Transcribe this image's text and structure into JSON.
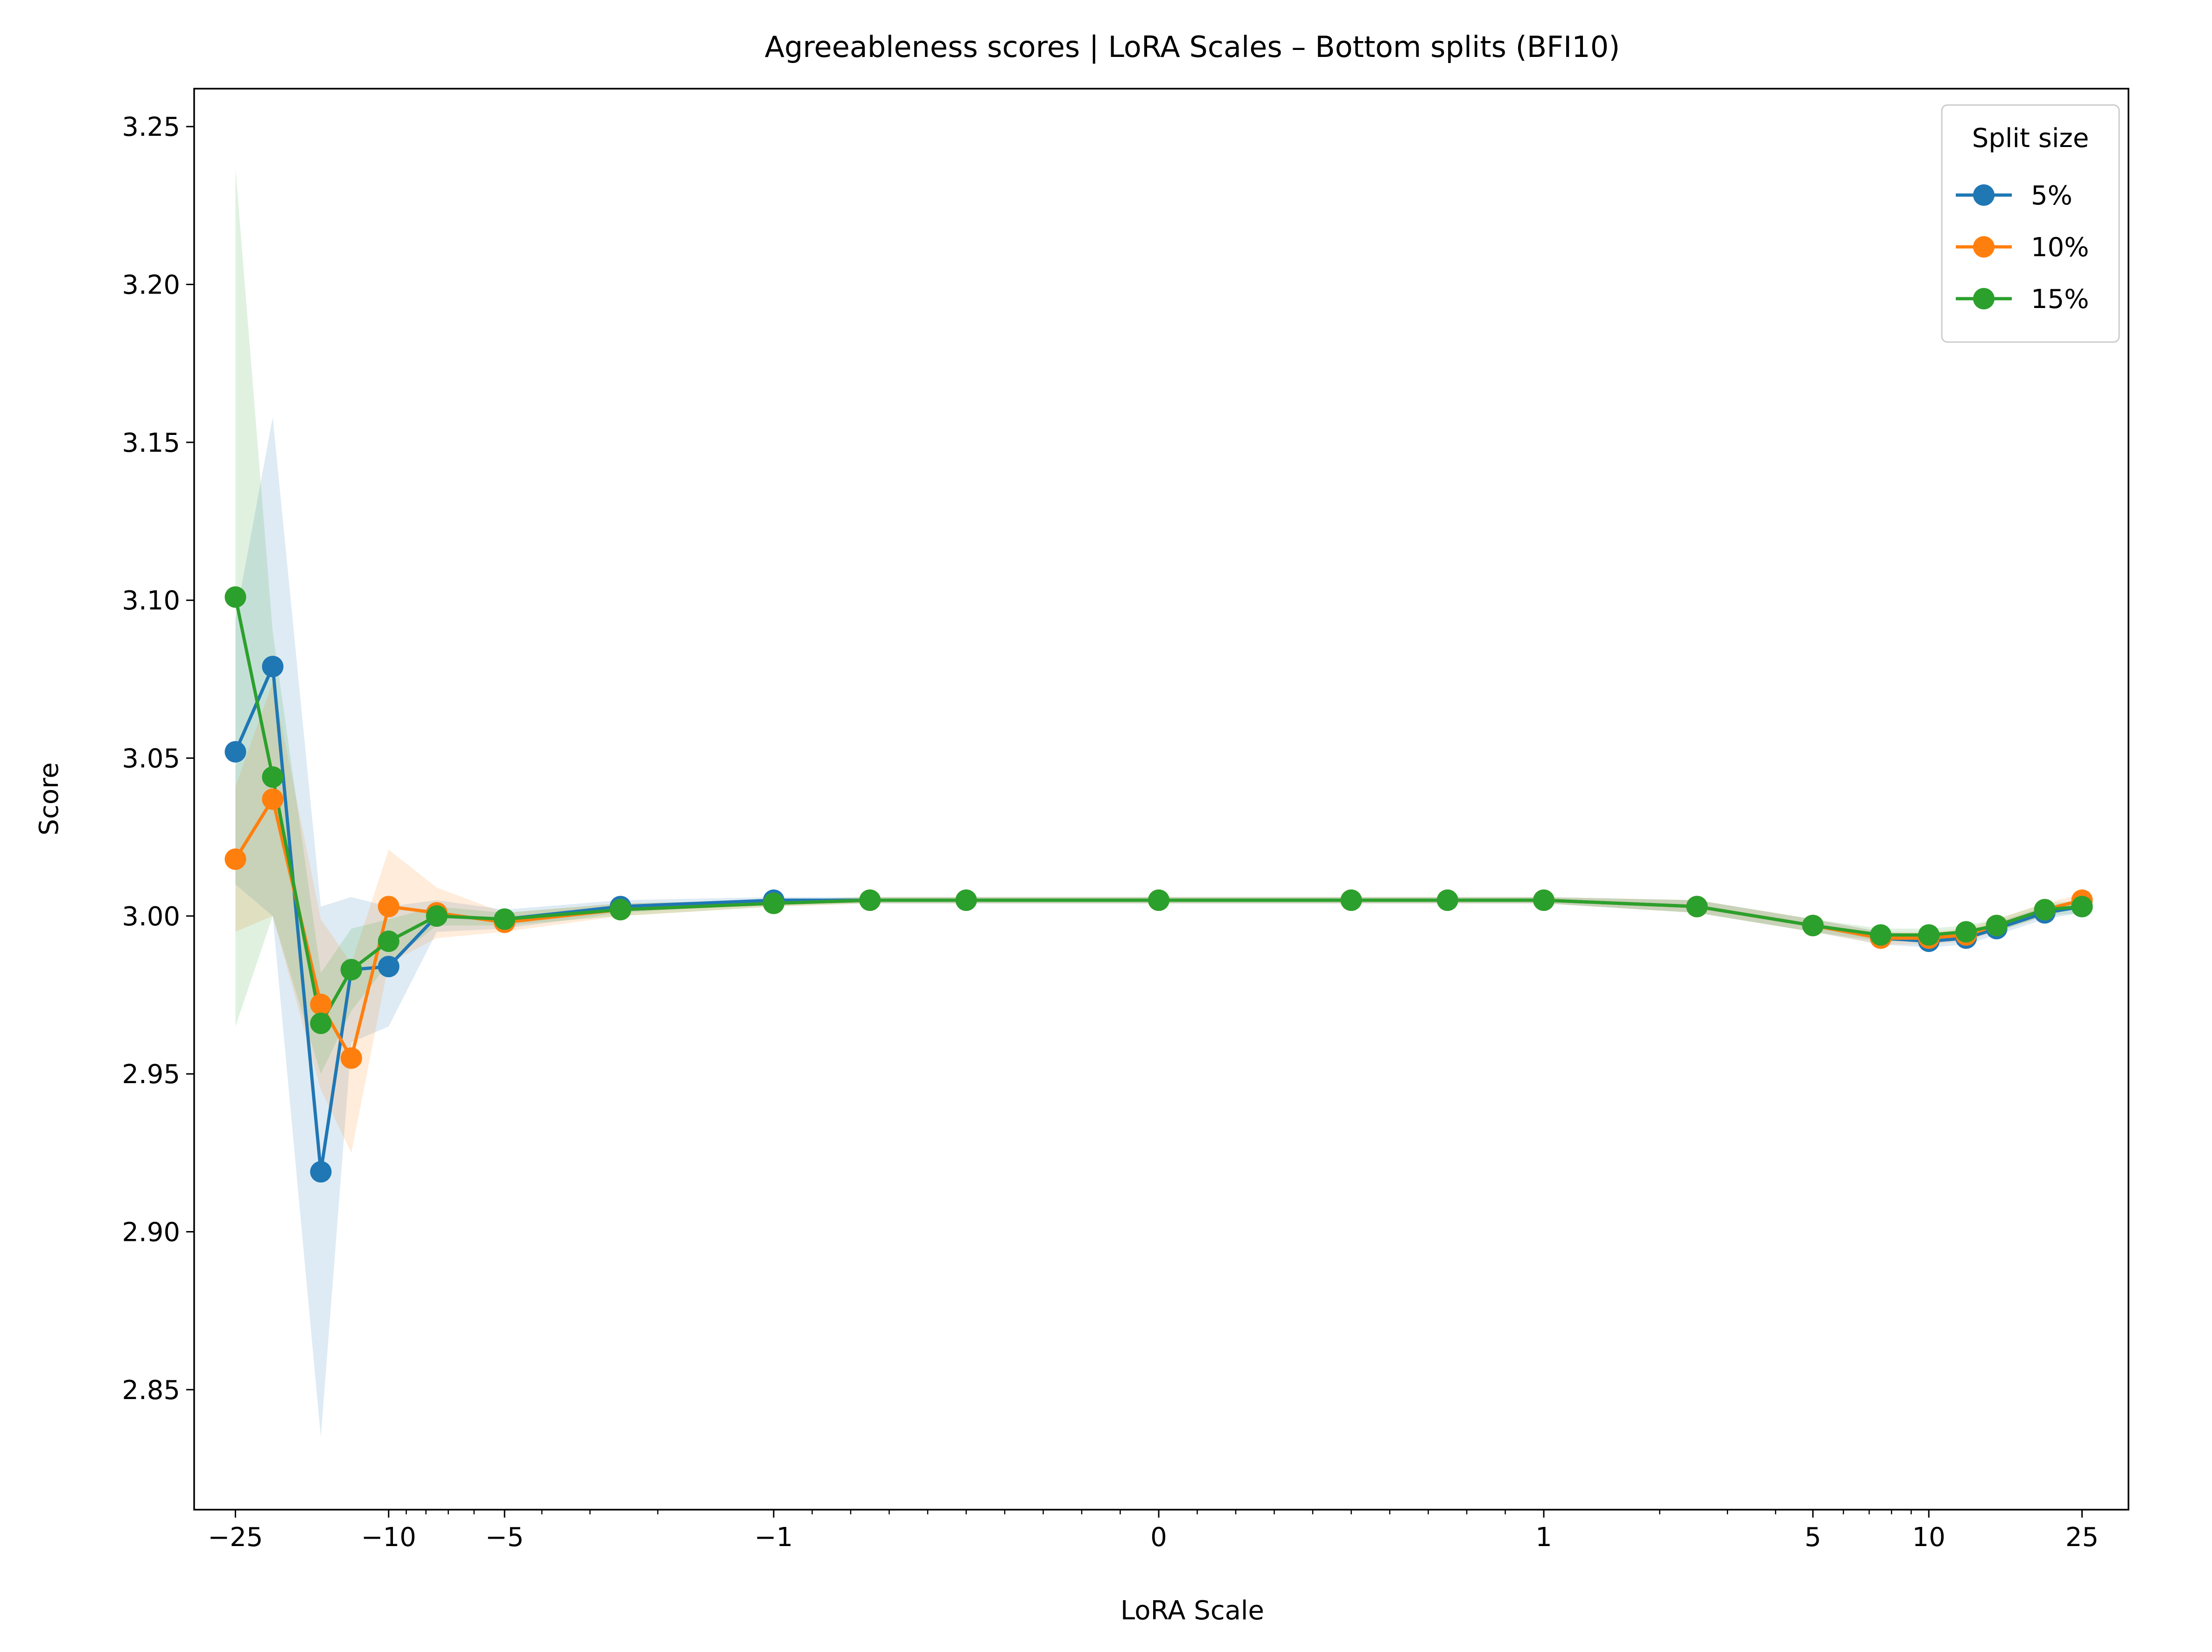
{
  "chart_data": {
    "type": "line",
    "title": "Agreeableness scores | LoRA Scales – Bottom splits (BFI10)",
    "xlabel": "LoRA Scale",
    "ylabel": "Score",
    "x_scale": "symlog",
    "x_linthresh": 1,
    "xlim": [
      -32,
      33
    ],
    "ylim": [
      2.812,
      3.262
    ],
    "x_ticks": [
      {
        "value": -25,
        "label": "−25"
      },
      {
        "value": -10,
        "label": "−10"
      },
      {
        "value": -5,
        "label": "−5"
      },
      {
        "value": -1,
        "label": "−1"
      },
      {
        "value": 0,
        "label": "0"
      },
      {
        "value": 1,
        "label": "1"
      },
      {
        "value": 5,
        "label": "5"
      },
      {
        "value": 10,
        "label": "10"
      },
      {
        "value": 25,
        "label": "25"
      }
    ],
    "y_ticks": [
      {
        "value": 2.85,
        "label": "2.85"
      },
      {
        "value": 2.9,
        "label": "2.90"
      },
      {
        "value": 2.95,
        "label": "2.95"
      },
      {
        "value": 3.0,
        "label": "3.00"
      },
      {
        "value": 3.05,
        "label": "3.05"
      },
      {
        "value": 3.1,
        "label": "3.10"
      },
      {
        "value": 3.15,
        "label": "3.15"
      },
      {
        "value": 3.2,
        "label": "3.20"
      },
      {
        "value": 3.25,
        "label": "3.25"
      }
    ],
    "grid": false,
    "legend": {
      "title": "Split size",
      "position": "top-right"
    },
    "x": [
      -25,
      -20,
      -15,
      -12.5,
      -10,
      -7.5,
      -5,
      -2.5,
      -1,
      -0.75,
      -0.5,
      0,
      0.5,
      0.75,
      1,
      2.5,
      5,
      7.5,
      10,
      12.5,
      15,
      20,
      25
    ],
    "series": [
      {
        "name": "5%",
        "color": "#1f77b4",
        "values": [
          3.052,
          3.079,
          2.919,
          2.983,
          2.984,
          3.0,
          2.999,
          3.003,
          3.005,
          3.005,
          3.005,
          3.005,
          3.005,
          3.005,
          3.005,
          3.003,
          2.997,
          2.993,
          2.992,
          2.993,
          2.996,
          3.001,
          3.003
        ],
        "band": [
          [
            3.01,
            3.094
          ],
          [
            3.0,
            3.158
          ],
          [
            2.835,
            3.003
          ],
          [
            2.96,
            3.006
          ],
          [
            2.965,
            3.003
          ],
          [
            2.995,
            3.005
          ],
          [
            2.996,
            3.002
          ],
          [
            3.001,
            3.005
          ],
          [
            3.004,
            3.006
          ],
          [
            3.004,
            3.006
          ],
          [
            3.004,
            3.006
          ],
          [
            3.004,
            3.006
          ],
          [
            3.004,
            3.006
          ],
          [
            3.004,
            3.006
          ],
          [
            3.004,
            3.006
          ],
          [
            3.001,
            3.005
          ],
          [
            2.995,
            2.999
          ],
          [
            2.991,
            2.995
          ],
          [
            2.99,
            2.994
          ],
          [
            2.991,
            2.995
          ],
          [
            2.994,
            2.998
          ],
          [
            2.999,
            3.003
          ],
          [
            3.001,
            3.005
          ]
        ]
      },
      {
        "name": "10%",
        "color": "#ff7f0e",
        "values": [
          3.018,
          3.037,
          2.972,
          2.955,
          3.003,
          3.001,
          2.998,
          3.002,
          3.004,
          3.005,
          3.005,
          3.005,
          3.005,
          3.005,
          3.005,
          3.003,
          2.997,
          2.993,
          2.993,
          2.994,
          2.997,
          3.002,
          3.005
        ],
        "band": [
          [
            2.995,
            3.041
          ],
          [
            3.0,
            3.074
          ],
          [
            2.945,
            2.999
          ],
          [
            2.925,
            2.985
          ],
          [
            2.985,
            3.021
          ],
          [
            2.993,
            3.009
          ],
          [
            2.995,
            3.001
          ],
          [
            3.0,
            3.004
          ],
          [
            3.003,
            3.005
          ],
          [
            3.004,
            3.006
          ],
          [
            3.004,
            3.006
          ],
          [
            3.004,
            3.006
          ],
          [
            3.004,
            3.006
          ],
          [
            3.004,
            3.006
          ],
          [
            3.004,
            3.006
          ],
          [
            3.001,
            3.005
          ],
          [
            2.995,
            2.999
          ],
          [
            2.991,
            2.995
          ],
          [
            2.991,
            2.995
          ],
          [
            2.992,
            2.996
          ],
          [
            2.995,
            2.999
          ],
          [
            3.0,
            3.004
          ],
          [
            3.003,
            3.007
          ]
        ]
      },
      {
        "name": "15%",
        "color": "#2ca02c",
        "values": [
          3.101,
          3.044,
          2.966,
          2.983,
          2.992,
          3.0,
          2.999,
          3.002,
          3.004,
          3.005,
          3.005,
          3.005,
          3.005,
          3.005,
          3.005,
          3.003,
          2.997,
          2.994,
          2.994,
          2.995,
          2.997,
          3.002,
          3.003
        ],
        "band": [
          [
            2.965,
            3.237
          ],
          [
            3.0,
            3.09
          ],
          [
            2.95,
            2.982
          ],
          [
            2.97,
            2.996
          ],
          [
            2.985,
            2.999
          ],
          [
            2.997,
            3.003
          ],
          [
            2.997,
            3.001
          ],
          [
            3.0,
            3.004
          ],
          [
            3.003,
            3.005
          ],
          [
            3.004,
            3.006
          ],
          [
            3.004,
            3.006
          ],
          [
            3.004,
            3.006
          ],
          [
            3.004,
            3.006
          ],
          [
            3.004,
            3.006
          ],
          [
            3.004,
            3.006
          ],
          [
            3.001,
            3.005
          ],
          [
            2.995,
            2.999
          ],
          [
            2.992,
            2.996
          ],
          [
            2.992,
            2.996
          ],
          [
            2.993,
            2.997
          ],
          [
            2.995,
            2.999
          ],
          [
            3.0,
            3.004
          ],
          [
            3.001,
            3.005
          ]
        ]
      }
    ]
  }
}
